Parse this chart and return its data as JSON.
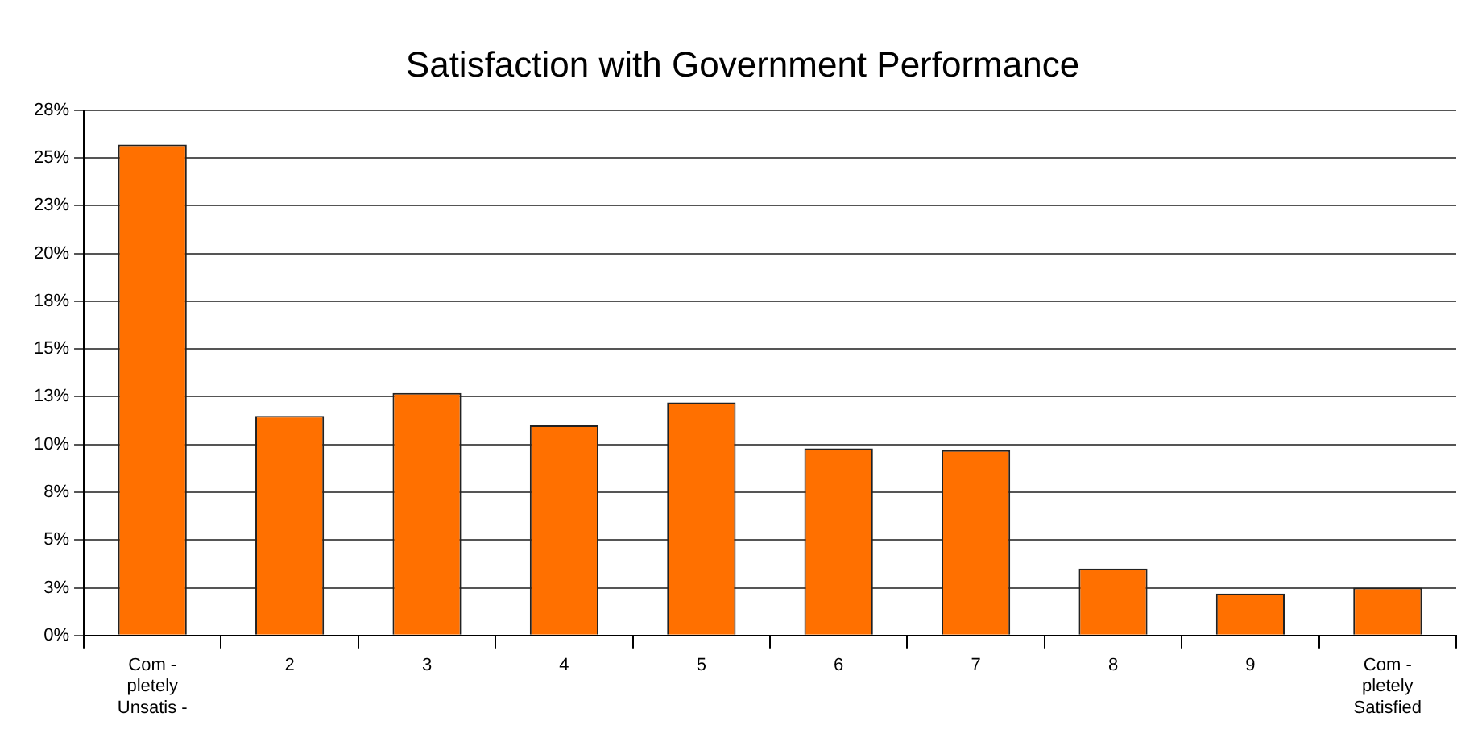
{
  "chart_data": {
    "type": "bar",
    "title": "Satisfaction with Government Performance",
    "categories": [
      "Com -\npletely\nUnsatis -",
      "2",
      "3",
      "4",
      "5",
      "6",
      "7",
      "8",
      "9",
      "Com -\npletely\nSatisfied"
    ],
    "values": [
      25.7,
      11.5,
      12.7,
      11.0,
      12.2,
      9.8,
      9.7,
      3.5,
      2.2,
      2.5
    ],
    "color": "#ff7000",
    "ylim": [
      0,
      27.5
    ],
    "yticks": [
      {
        "value": 0,
        "label": "0%"
      },
      {
        "value": 2.5,
        "label": "3%"
      },
      {
        "value": 5,
        "label": "5%"
      },
      {
        "value": 7.5,
        "label": "8%"
      },
      {
        "value": 10,
        "label": "10%"
      },
      {
        "value": 12.5,
        "label": "13%"
      },
      {
        "value": 15,
        "label": "15%"
      },
      {
        "value": 17.5,
        "label": "18%"
      },
      {
        "value": 20,
        "label": "20%"
      },
      {
        "value": 22.5,
        "label": "23%"
      },
      {
        "value": 25,
        "label": "25%"
      },
      {
        "value": 27.5,
        "label": "28%"
      }
    ],
    "grid": "y",
    "legend": false
  }
}
